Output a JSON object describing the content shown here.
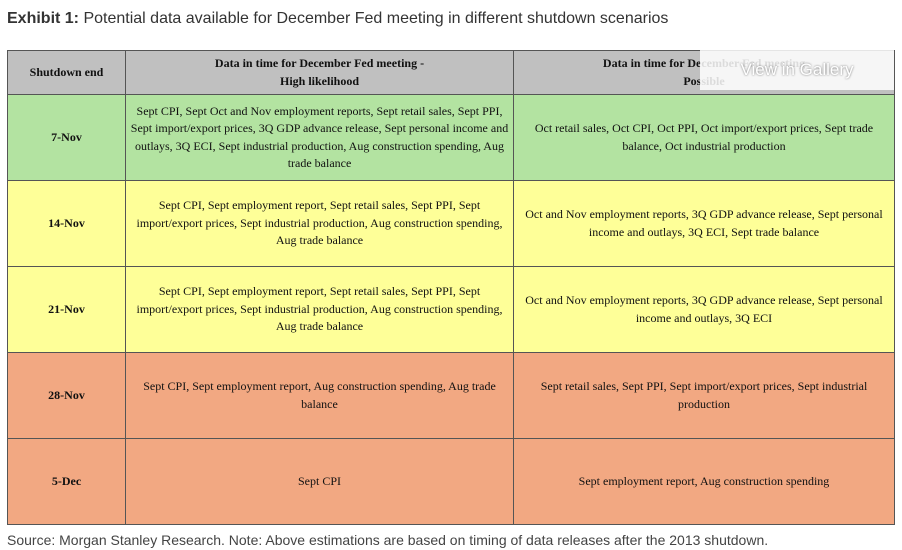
{
  "title": {
    "lead": "Exhibit 1:",
    "text": "Potential data available for December Fed meeting in different shutdown scenarios"
  },
  "table": {
    "headers": {
      "shutdown_end": "Shutdown end",
      "high_line1": "Data in time for December Fed meeting -",
      "high_line2": "High likelihood",
      "possible_line1": "Data in time for December Fed meeting",
      "possible_line2": "Possible"
    },
    "rows": [
      {
        "end": "7-Nov",
        "high": "Sept CPI, Sept Oct and Nov employment reports, Sept retail sales, Sept PPI, Sept import/export prices, 3Q GDP advance release, Sept personal income and outlays, 3Q ECI, Sept industrial production, Aug construction spending, Aug trade balance",
        "possible": "Oct retail sales, Oct CPI, Oct PPI, Oct import/export prices, Sept trade balance, Oct industrial production",
        "color": "#b3e3a1"
      },
      {
        "end": "14-Nov",
        "high": "Sept CPI, Sept employment report, Sept retail sales, Sept PPI, Sept import/export prices, Sept industrial production, Aug construction spending, Aug trade balance",
        "possible": "Oct and Nov employment reports, 3Q GDP advance release, Sept personal income and outlays, 3Q ECI, Sept trade balance",
        "color": "#feff98"
      },
      {
        "end": "21-Nov",
        "high": "Sept CPI, Sept employment report, Sept retail sales, Sept PPI, Sept import/export prices, Sept industrial production, Aug construction spending, Aug trade balance",
        "possible": "Oct and Nov employment reports, 3Q GDP advance release, Sept personal income and outlays, 3Q ECI",
        "color": "#feff98"
      },
      {
        "end": "28-Nov",
        "high": "Sept CPI, Sept employment report, Aug construction spending, Aug trade balance",
        "possible": "Sept retail sales, Sept PPI, Sept import/export prices, Sept industrial production",
        "color": "#f2a882"
      },
      {
        "end": "5-Dec",
        "high": "Sept CPI",
        "possible": "Sept employment report, Aug construction spending",
        "color": "#f2a882"
      }
    ]
  },
  "overlay": {
    "label": "View in Gallery"
  },
  "source": "Source: Morgan Stanley Research. Note: Above estimations are based on timing of data releases after the 2013 shutdown."
}
